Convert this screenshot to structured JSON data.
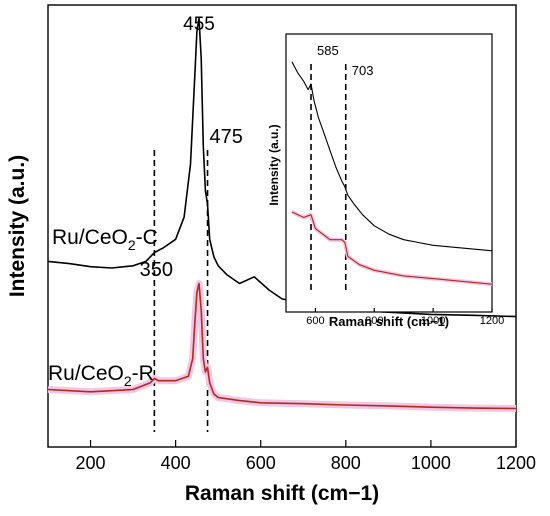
{
  "chart_data": [
    {
      "type": "line",
      "xlabel": "Raman shift (cm−1)",
      "ylabel": "Intensity (a.u.)",
      "xlim": [
        100,
        1200
      ],
      "ylim": [
        0,
        1
      ],
      "xticks": [
        200,
        400,
        600,
        800,
        1000,
        1200
      ],
      "yticks": [],
      "grid": false,
      "series": [
        {
          "name": "Ru/CeO2-C",
          "color": "#000000",
          "x": [
            100,
            150,
            200,
            250,
            300,
            330,
            350,
            370,
            400,
            420,
            435,
            445,
            450,
            455,
            460,
            465,
            470,
            475,
            480,
            490,
            500,
            520,
            550,
            585,
            620,
            650,
            700,
            800,
            900,
            1000,
            1100,
            1200
          ],
          "y": [
            0.42,
            0.415,
            0.408,
            0.405,
            0.41,
            0.42,
            0.44,
            0.45,
            0.47,
            0.52,
            0.64,
            0.84,
            0.94,
            0.97,
            0.88,
            0.68,
            0.58,
            0.55,
            0.47,
            0.43,
            0.41,
            0.39,
            0.37,
            0.385,
            0.355,
            0.335,
            0.325,
            0.31,
            0.305,
            0.3,
            0.298,
            0.295
          ]
        },
        {
          "name": "Ru/CeO2-R",
          "color": "#b22a1e",
          "band_color": "#f2c6e6",
          "x": [
            100,
            200,
            300,
            340,
            350,
            360,
            400,
            430,
            440,
            445,
            450,
            455,
            460,
            465,
            470,
            475,
            480,
            490,
            500,
            550,
            600,
            700,
            800,
            900,
            1000,
            1100,
            1200
          ],
          "y": [
            0.13,
            0.125,
            0.13,
            0.145,
            0.155,
            0.15,
            0.15,
            0.16,
            0.2,
            0.28,
            0.35,
            0.37,
            0.31,
            0.2,
            0.17,
            0.18,
            0.145,
            0.12,
            0.112,
            0.105,
            0.1,
            0.098,
            0.095,
            0.093,
            0.09,
            0.088,
            0.087
          ]
        }
      ],
      "series_labels": [
        {
          "text_main": "Ru/CeO",
          "text_sub": "2",
          "text_end": "-C"
        },
        {
          "text_main": "Ru/CeO",
          "text_sub": "2",
          "text_end": "-R"
        }
      ],
      "annotations": [
        {
          "text": "455",
          "x": 455
        },
        {
          "text": "475",
          "x": 475
        },
        {
          "text": "350",
          "x": 350
        }
      ],
      "dashed_lines": [
        350,
        475
      ]
    },
    {
      "type": "line",
      "xlabel": "Raman shift (cm−1)",
      "ylabel": "Intensity (a.u.)",
      "xlim": [
        500,
        1200
      ],
      "ylim": [
        0,
        1
      ],
      "xticks": [
        600,
        800,
        1000,
        1200
      ],
      "yticks": [],
      "grid": false,
      "series": [
        {
          "name": "Ru/CeO2-C",
          "color": "#000000",
          "x": [
            520,
            540,
            560,
            575,
            585,
            595,
            610,
            630,
            650,
            670,
            690,
            700,
            710,
            730,
            760,
            800,
            850,
            900,
            950,
            1000,
            1050,
            1100,
            1150,
            1200
          ],
          "y": [
            0.9,
            0.86,
            0.83,
            0.8,
            0.82,
            0.76,
            0.7,
            0.64,
            0.58,
            0.52,
            0.47,
            0.45,
            0.42,
            0.39,
            0.35,
            0.31,
            0.28,
            0.26,
            0.25,
            0.24,
            0.235,
            0.23,
            0.225,
            0.22
          ]
        },
        {
          "name": "Ru/CeO2-R",
          "color": "#b22a1e",
          "band_color": "#f2c6e6",
          "x": [
            520,
            560,
            585,
            600,
            650,
            690,
            700,
            710,
            750,
            800,
            900,
            1000,
            1100,
            1200
          ],
          "y": [
            0.36,
            0.34,
            0.35,
            0.3,
            0.26,
            0.26,
            0.25,
            0.2,
            0.17,
            0.15,
            0.13,
            0.12,
            0.11,
            0.1
          ]
        }
      ],
      "annotations": [
        {
          "text": "585",
          "x": 585
        },
        {
          "text": "703",
          "x": 703
        }
      ],
      "dashed_lines": [
        585,
        703
      ]
    }
  ]
}
